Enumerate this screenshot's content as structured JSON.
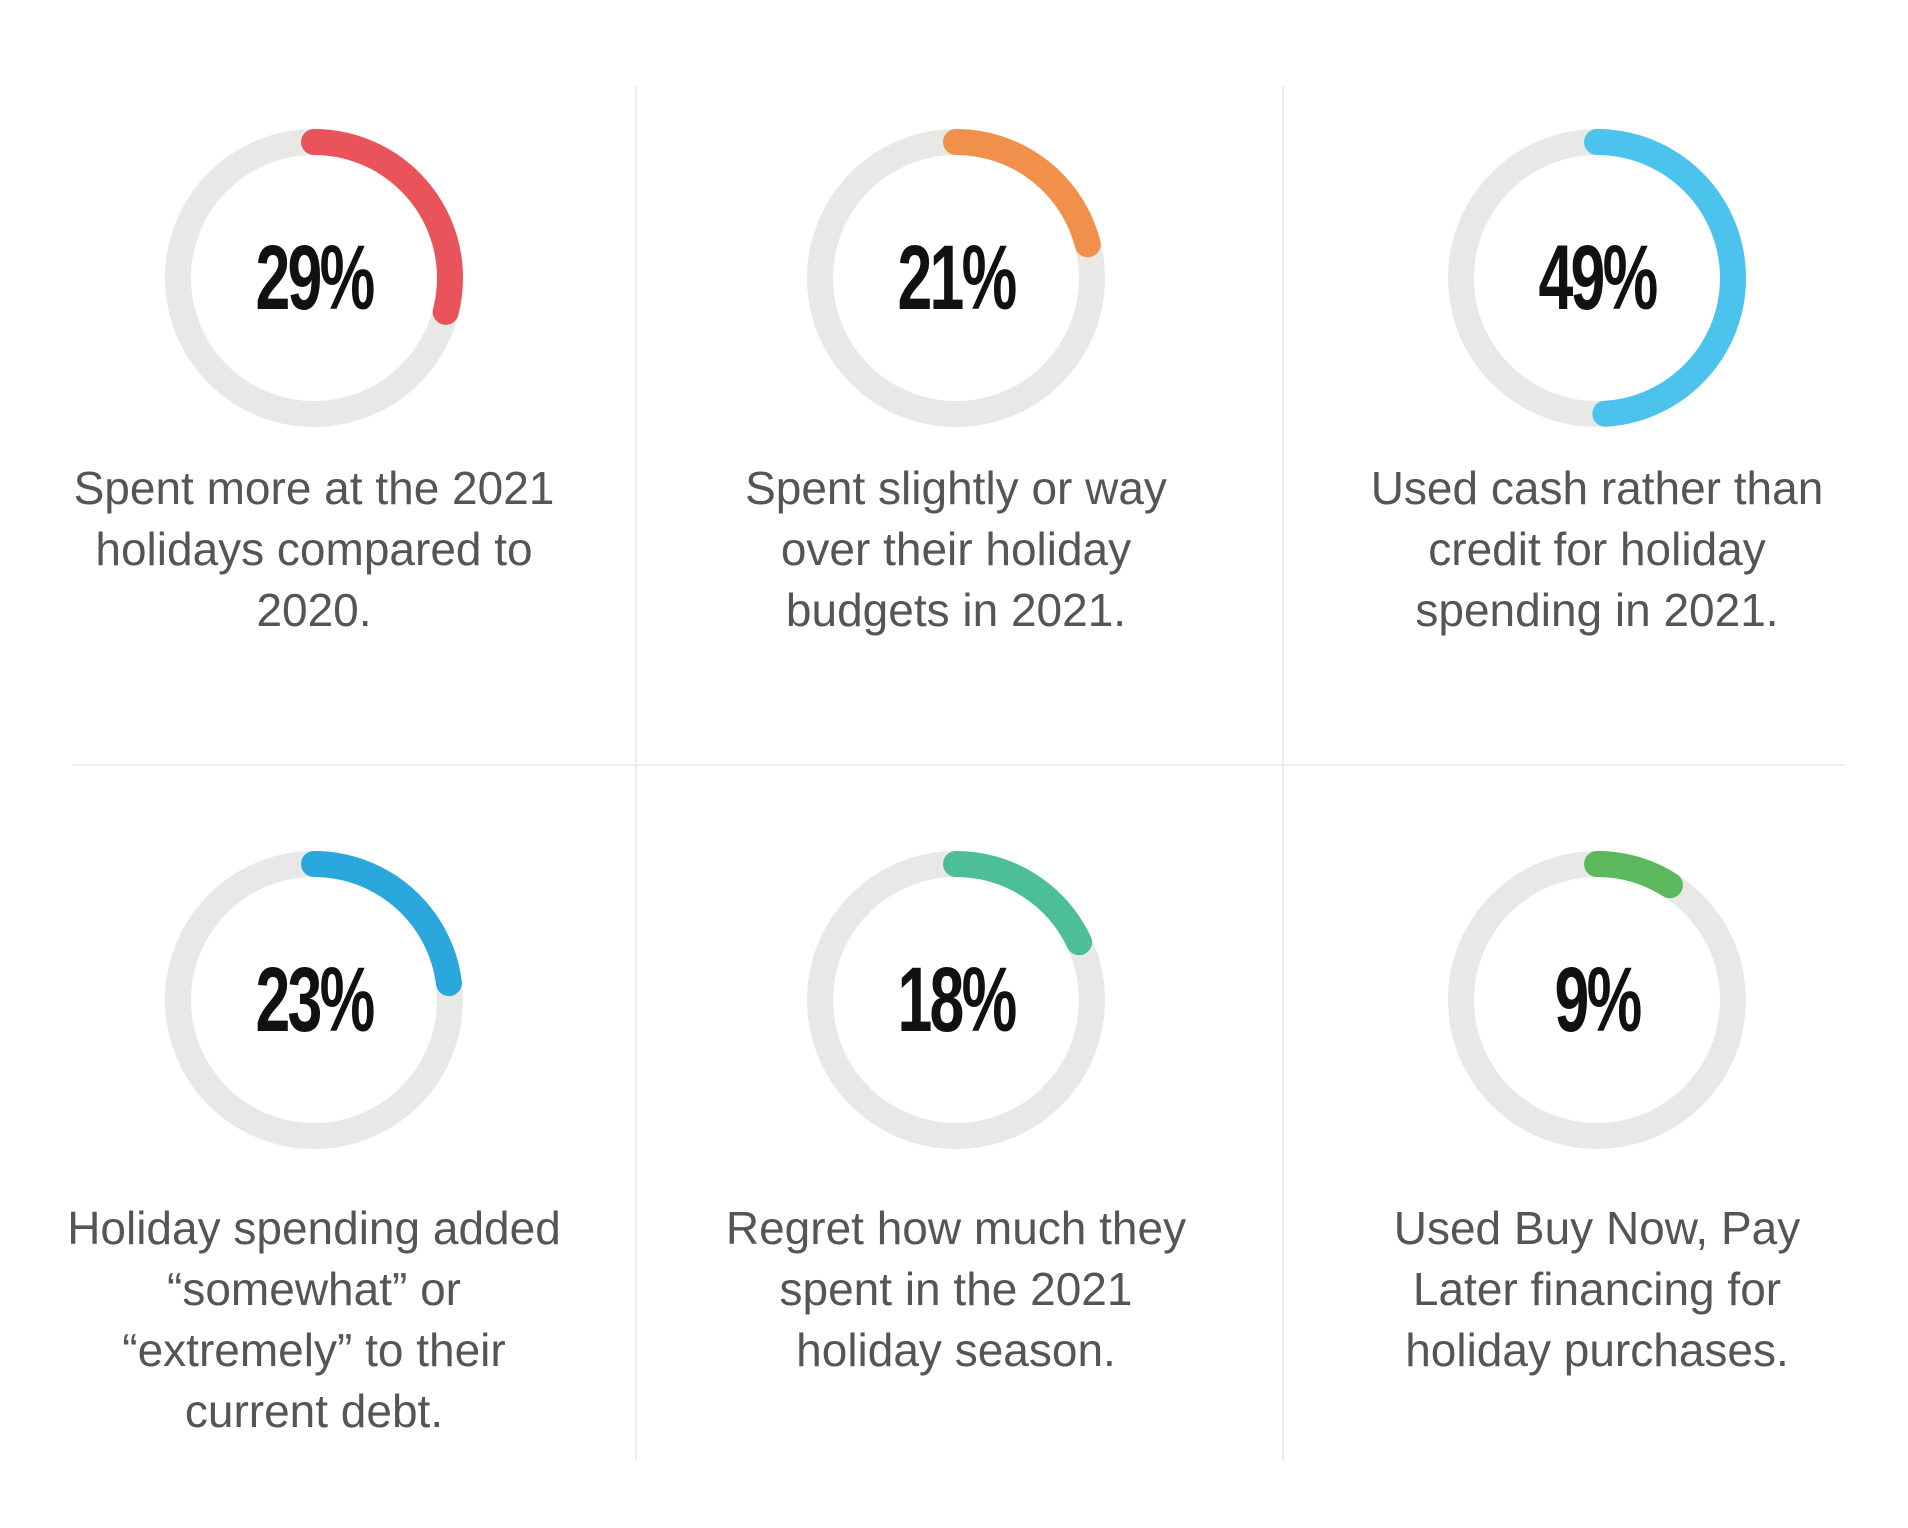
{
  "chart_data": {
    "type": "donut",
    "track_color": "#e8e8e6",
    "items": [
      {
        "value": 29,
        "label": "29%",
        "description": "Spent more at the 2021 holidays compared to 2020.",
        "color": "#e9545a"
      },
      {
        "value": 21,
        "label": "21%",
        "description": "Spent slightly or way over their holiday budgets in 2021.",
        "color": "#f0904a"
      },
      {
        "value": 49,
        "label": "49%",
        "description": "Used cash rather than credit for holiday spending in 2021.",
        "color": "#4cc3ec"
      },
      {
        "value": 23,
        "label": "23%",
        "description": "Holiday spending added “somewhat” or “extremely” to their current debt.",
        "color": "#2aa7dd"
      },
      {
        "value": 18,
        "label": "18%",
        "description": "Regret how much they spent in the 2021 holiday season.",
        "color": "#4dbf96"
      },
      {
        "value": 9,
        "label": "9%",
        "description": "Used Buy Now, Pay Later financing for holiday purchases.",
        "color": "#5cb85c"
      }
    ]
  }
}
